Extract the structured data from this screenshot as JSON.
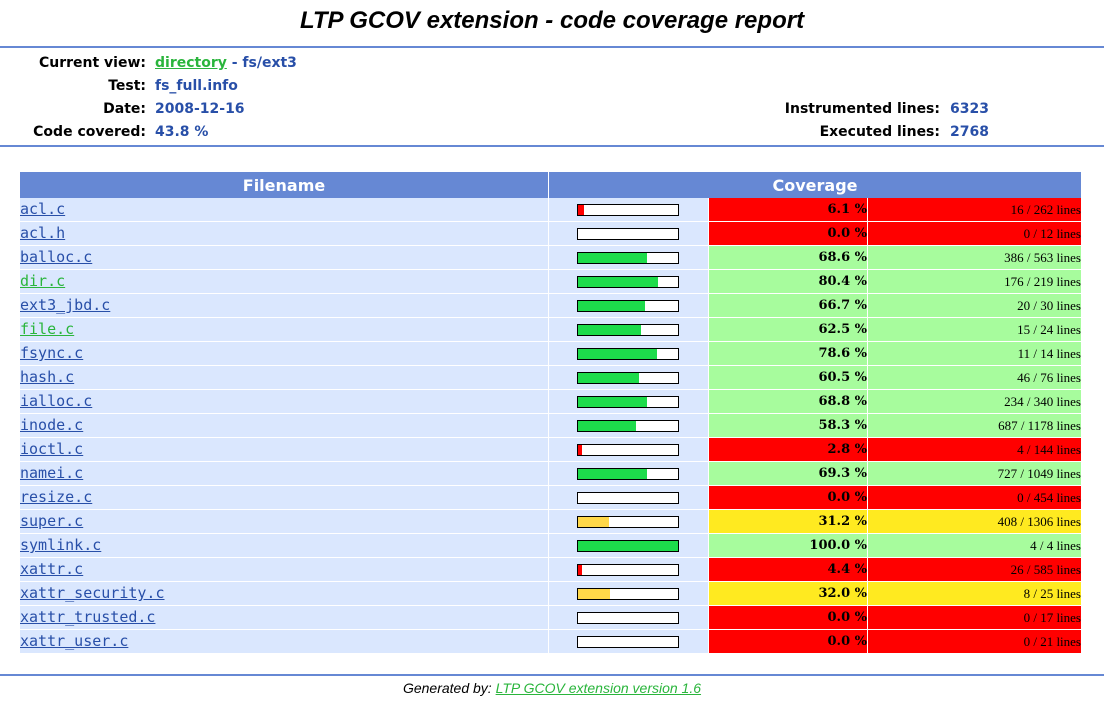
{
  "title": "LTP GCOV extension - code coverage report",
  "info": {
    "current_view_label": "Current view:",
    "current_view_link": "directory",
    "current_view_sep": " - ",
    "current_view_path": "fs/ext3",
    "test_label": "Test:",
    "test_value": "fs_full.info",
    "date_label": "Date:",
    "date_value": "2008-12-16",
    "code_covered_label": "Code covered:",
    "code_covered_value": "43.8 %",
    "instrumented_label": "Instrumented lines:",
    "instrumented_value": "6323",
    "executed_label": "Executed lines:",
    "executed_value": "2768"
  },
  "table": {
    "header_filename": "Filename",
    "header_coverage": "Coverage",
    "rows": [
      {
        "file": "acl.c",
        "visited": false,
        "pct": 6.1,
        "pct_text": "6.1 %",
        "lines": "16 / 262 lines",
        "level": "lo"
      },
      {
        "file": "acl.h",
        "visited": false,
        "pct": 0.0,
        "pct_text": "0.0 %",
        "lines": "0 / 12 lines",
        "level": "lo"
      },
      {
        "file": "balloc.c",
        "visited": false,
        "pct": 68.6,
        "pct_text": "68.6 %",
        "lines": "386 / 563 lines",
        "level": "hi"
      },
      {
        "file": "dir.c",
        "visited": true,
        "pct": 80.4,
        "pct_text": "80.4 %",
        "lines": "176 / 219 lines",
        "level": "hi"
      },
      {
        "file": "ext3_jbd.c",
        "visited": false,
        "pct": 66.7,
        "pct_text": "66.7 %",
        "lines": "20 / 30 lines",
        "level": "hi"
      },
      {
        "file": "file.c",
        "visited": true,
        "pct": 62.5,
        "pct_text": "62.5 %",
        "lines": "15 / 24 lines",
        "level": "hi"
      },
      {
        "file": "fsync.c",
        "visited": false,
        "pct": 78.6,
        "pct_text": "78.6 %",
        "lines": "11 / 14 lines",
        "level": "hi"
      },
      {
        "file": "hash.c",
        "visited": false,
        "pct": 60.5,
        "pct_text": "60.5 %",
        "lines": "46 / 76 lines",
        "level": "hi"
      },
      {
        "file": "ialloc.c",
        "visited": false,
        "pct": 68.8,
        "pct_text": "68.8 %",
        "lines": "234 / 340 lines",
        "level": "hi"
      },
      {
        "file": "inode.c",
        "visited": false,
        "pct": 58.3,
        "pct_text": "58.3 %",
        "lines": "687 / 1178 lines",
        "level": "hi"
      },
      {
        "file": "ioctl.c",
        "visited": false,
        "pct": 2.8,
        "pct_text": "2.8 %",
        "lines": "4 / 144 lines",
        "level": "lo"
      },
      {
        "file": "namei.c",
        "visited": false,
        "pct": 69.3,
        "pct_text": "69.3 %",
        "lines": "727 / 1049 lines",
        "level": "hi"
      },
      {
        "file": "resize.c",
        "visited": false,
        "pct": 0.0,
        "pct_text": "0.0 %",
        "lines": "0 / 454 lines",
        "level": "lo"
      },
      {
        "file": "super.c",
        "visited": false,
        "pct": 31.2,
        "pct_text": "31.2 %",
        "lines": "408 / 1306 lines",
        "level": "med"
      },
      {
        "file": "symlink.c",
        "visited": false,
        "pct": 100.0,
        "pct_text": "100.0 %",
        "lines": "4 / 4 lines",
        "level": "hi"
      },
      {
        "file": "xattr.c",
        "visited": false,
        "pct": 4.4,
        "pct_text": "4.4 %",
        "lines": "26 / 585 lines",
        "level": "lo"
      },
      {
        "file": "xattr_security.c",
        "visited": false,
        "pct": 32.0,
        "pct_text": "32.0 %",
        "lines": "8 / 25 lines",
        "level": "med"
      },
      {
        "file": "xattr_trusted.c",
        "visited": false,
        "pct": 0.0,
        "pct_text": "0.0 %",
        "lines": "0 / 17 lines",
        "level": "lo"
      },
      {
        "file": "xattr_user.c",
        "visited": false,
        "pct": 0.0,
        "pct_text": "0.0 %",
        "lines": "0 / 21 lines",
        "level": "lo"
      }
    ]
  },
  "footer": {
    "prefix": "Generated by: ",
    "link": "LTP GCOV extension version 1.6"
  },
  "colors": {
    "rule": "#6688d4",
    "header_bg": "#6688d4",
    "row_bg": "#dae7fe",
    "low": "#ff0000",
    "medium": "#ffea20",
    "high": "#a7fc9d",
    "link": "#284fa8",
    "visited_link": "#2ab53c"
  }
}
